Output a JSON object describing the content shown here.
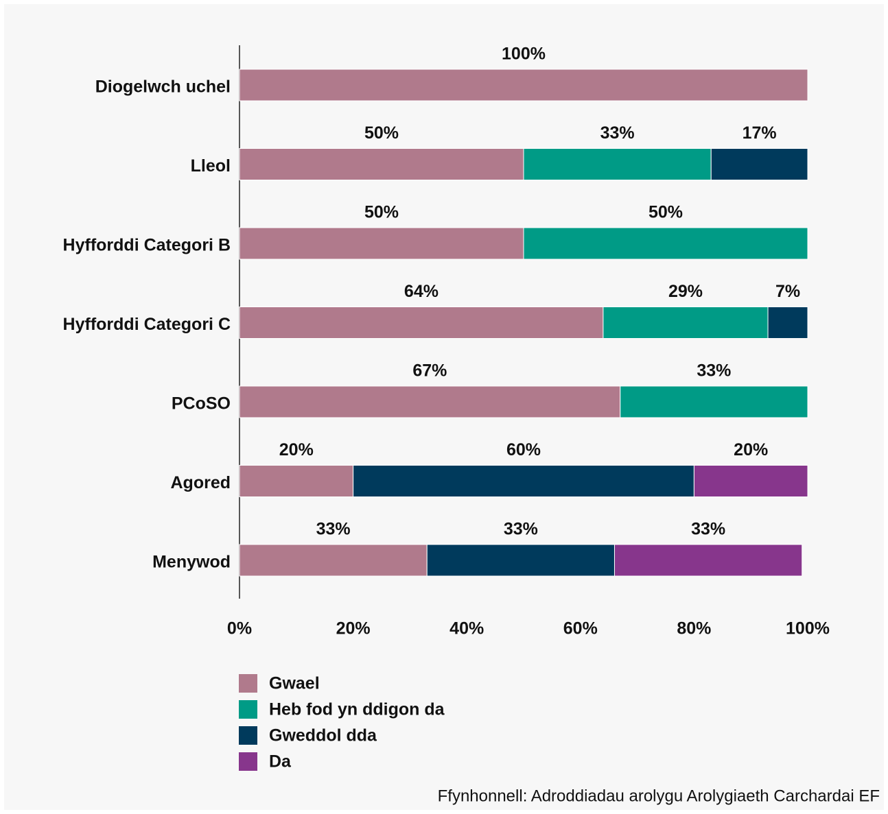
{
  "chart_data": {
    "type": "stacked-barh",
    "categories": [
      "Diogelwch uchel",
      "Lleol",
      "Hyfforddi Categori B",
      "Hyfforddi Categori C",
      "PCoSO",
      "Agored",
      "Menywod"
    ],
    "series": [
      {
        "name": "Gwael",
        "color": "#b07a8c",
        "values": [
          100,
          50,
          50,
          64,
          67,
          20,
          33
        ],
        "value_labels": [
          "100%",
          "50%",
          "50%",
          "64%",
          "67%",
          "20%",
          "33%"
        ]
      },
      {
        "name": "Heb fod yn ddigon da",
        "color": "#009b86",
        "values": [
          null,
          33,
          50,
          29,
          33,
          null,
          null
        ],
        "value_labels": [
          null,
          "33%",
          "50%",
          "29%",
          "33%",
          null,
          null
        ]
      },
      {
        "name": "Gweddol dda",
        "color": "#003a5c",
        "values": [
          null,
          17,
          null,
          7,
          null,
          60,
          33
        ],
        "value_labels": [
          null,
          "17%",
          null,
          "7%",
          null,
          "60%",
          "33%"
        ]
      },
      {
        "name": "Da",
        "color": "#87368c",
        "values": [
          null,
          null,
          null,
          null,
          null,
          20,
          33
        ],
        "value_labels": [
          null,
          null,
          null,
          null,
          null,
          "20%",
          "33%"
        ]
      }
    ],
    "xlim": [
      0,
      100
    ],
    "xticks": [
      {
        "value": 0,
        "label": "0%"
      },
      {
        "value": 20,
        "label": "20%"
      },
      {
        "value": 40,
        "label": "40%"
      },
      {
        "value": 60,
        "label": "60%"
      },
      {
        "value": 80,
        "label": "80%"
      },
      {
        "value": 100,
        "label": "100%"
      }
    ],
    "source": "Ffynhonnell: Adroddiadau arolygu Arolygiaeth Carchardai EF"
  }
}
